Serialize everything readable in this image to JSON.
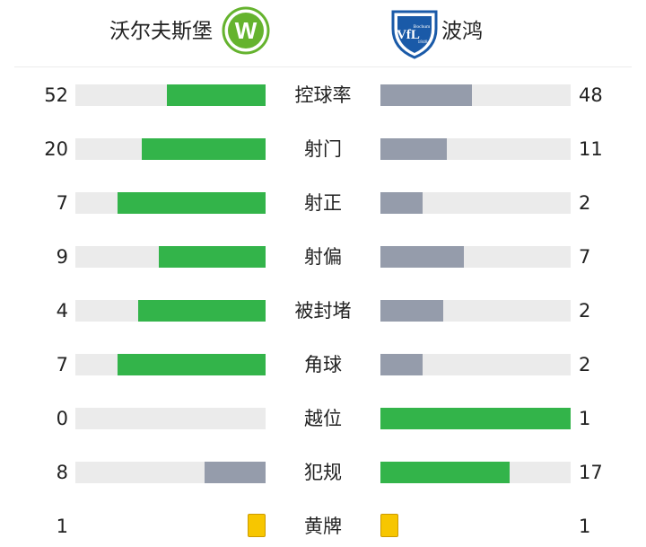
{
  "home_team": {
    "name": "沃尔夫斯堡",
    "logo": "wolfsburg-crest-icon",
    "logo_letter": "W",
    "color": "#33b44a"
  },
  "away_team": {
    "name": "波鸿",
    "logo": "bochum-crest-icon",
    "logo_letter": "VfL",
    "logo_text": "Bochum",
    "logo_year": "1848",
    "color": "#959cab"
  },
  "colors": {
    "winner": "#33b44a",
    "loser": "#959cab",
    "track": "#ebebeb",
    "card": "#f7c600"
  },
  "stats": [
    {
      "label": "控球率",
      "home": "52",
      "away": "48",
      "home_fill": 0.52,
      "away_fill": 0.48,
      "home_leads": true,
      "away_leads": false
    },
    {
      "label": "射门",
      "home": "20",
      "away": "11",
      "home_fill": 0.65,
      "away_fill": 0.35,
      "home_leads": true,
      "away_leads": false
    },
    {
      "label": "射正",
      "home": "7",
      "away": "2",
      "home_fill": 0.78,
      "away_fill": 0.22,
      "home_leads": true,
      "away_leads": false
    },
    {
      "label": "射偏",
      "home": "9",
      "away": "7",
      "home_fill": 0.56,
      "away_fill": 0.44,
      "home_leads": true,
      "away_leads": false
    },
    {
      "label": "被封堵",
      "home": "4",
      "away": "2",
      "home_fill": 0.67,
      "away_fill": 0.33,
      "home_leads": true,
      "away_leads": false
    },
    {
      "label": "角球",
      "home": "7",
      "away": "2",
      "home_fill": 0.78,
      "away_fill": 0.22,
      "home_leads": true,
      "away_leads": false
    },
    {
      "label": "越位",
      "home": "0",
      "away": "1",
      "home_fill": 0.0,
      "away_fill": 1.0,
      "home_leads": false,
      "away_leads": true
    },
    {
      "label": "犯规",
      "home": "8",
      "away": "17",
      "home_fill": 0.32,
      "away_fill": 0.68,
      "home_leads": false,
      "away_leads": true
    },
    {
      "label": "黄牌",
      "home": "1",
      "away": "1",
      "card": "yellow-card-icon"
    }
  ]
}
